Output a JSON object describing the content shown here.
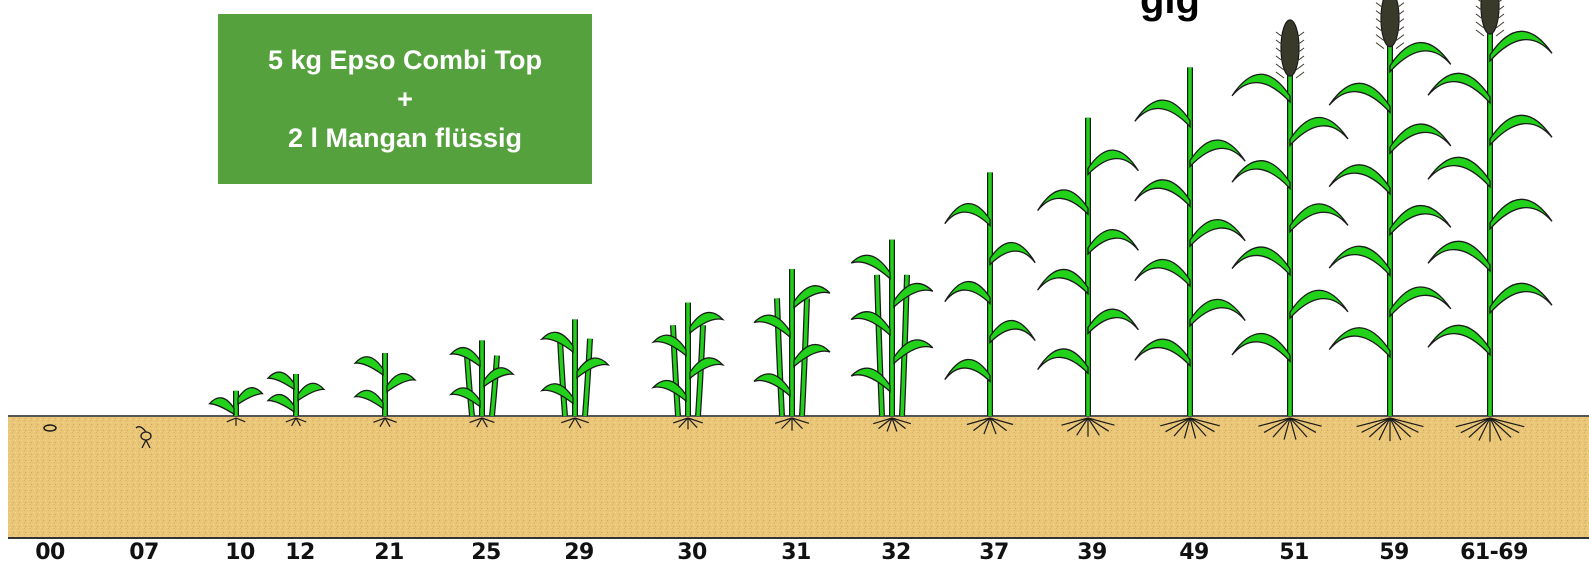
{
  "header_fragment": "gig",
  "treatment_box": {
    "line1": "5 kg Epso Combi Top",
    "line2": "+",
    "line3": "2 l Mangan flüssig",
    "color": "#55a13d"
  },
  "stages": [
    {
      "code": "00",
      "height": 0.0
    },
    {
      "code": "07",
      "height": 0.02
    },
    {
      "code": "10",
      "height": 0.06
    },
    {
      "code": "12",
      "height": 0.1
    },
    {
      "code": "21",
      "height": 0.15
    },
    {
      "code": "25",
      "height": 0.18
    },
    {
      "code": "29",
      "height": 0.23
    },
    {
      "code": "30",
      "height": 0.27
    },
    {
      "code": "31",
      "height": 0.35
    },
    {
      "code": "32",
      "height": 0.42
    },
    {
      "code": "37",
      "height": 0.58
    },
    {
      "code": "39",
      "height": 0.71
    },
    {
      "code": "49",
      "height": 0.83
    },
    {
      "code": "51",
      "height": 0.9
    },
    {
      "code": "59",
      "height": 0.97
    },
    {
      "code": "61-69",
      "height": 1.0
    }
  ],
  "colors": {
    "soil": "#e8c57a",
    "plant": "#22d11a",
    "outline": "#1a1a1a",
    "ear": "#3a3a2a"
  }
}
